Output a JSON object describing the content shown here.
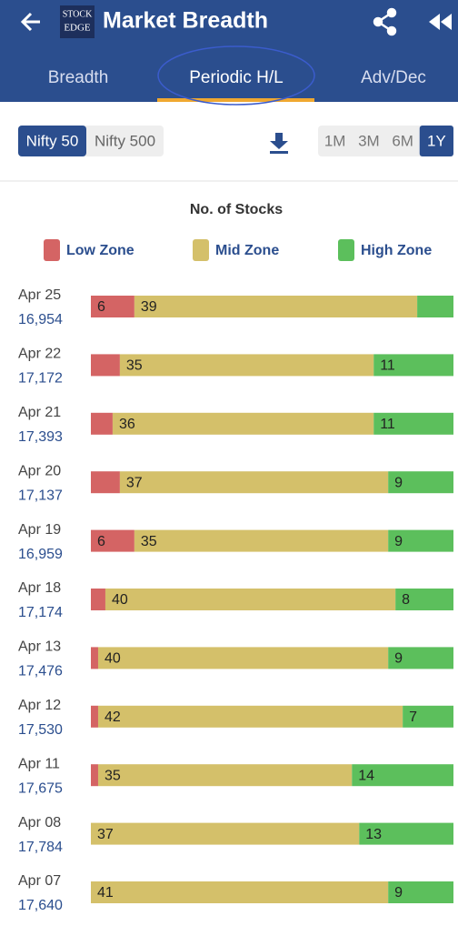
{
  "header": {
    "logo": [
      "STOCK",
      "EDGE"
    ],
    "title": "Market Breadth"
  },
  "tabs": {
    "items": [
      "Breadth",
      "Periodic H/L",
      "Adv/Dec"
    ],
    "active": 1
  },
  "index_options": {
    "items": [
      "Nifty 50",
      "Nifty 500"
    ],
    "active": 0
  },
  "periods": {
    "items": [
      "1M",
      "3M",
      "6M",
      "1Y"
    ],
    "active": 3
  },
  "chart_data": {
    "type": "stacked_barh",
    "title": "No. of Stocks",
    "categories": [
      "Apr 25",
      "Apr 22",
      "Apr 21",
      "Apr 20",
      "Apr 19",
      "Apr 18",
      "Apr 13",
      "Apr 12",
      "Apr 11",
      "Apr 08",
      "Apr 07"
    ],
    "index_values": [
      "16,954",
      "17,172",
      "17,393",
      "17,137",
      "16,959",
      "17,174",
      "17,476",
      "17,530",
      "17,675",
      "17,784",
      "17,640"
    ],
    "xlim": [
      0,
      50
    ],
    "series": [
      {
        "name": "Low Zone",
        "color": "#d46464",
        "values": [
          6,
          4,
          3,
          4,
          6,
          2,
          1,
          1,
          1,
          0,
          0
        ],
        "value_labels": [
          "6",
          null,
          null,
          null,
          "6",
          null,
          null,
          null,
          null,
          null,
          null
        ]
      },
      {
        "name": "Mid Zone",
        "color": "#d4c06a",
        "values": [
          39,
          35,
          36,
          37,
          35,
          40,
          40,
          42,
          35,
          37,
          41
        ],
        "value_labels": [
          "39",
          "35",
          "36",
          "37",
          "35",
          "40",
          "40",
          "42",
          "35",
          "37",
          "41"
        ]
      },
      {
        "name": "High Zone",
        "color": "#5cbf5c",
        "values": [
          5,
          11,
          11,
          9,
          9,
          8,
          9,
          7,
          14,
          13,
          9
        ],
        "value_labels": [
          null,
          "11",
          "11",
          "9",
          "9",
          "8",
          "9",
          "7",
          "14",
          "13",
          "9"
        ]
      }
    ]
  }
}
